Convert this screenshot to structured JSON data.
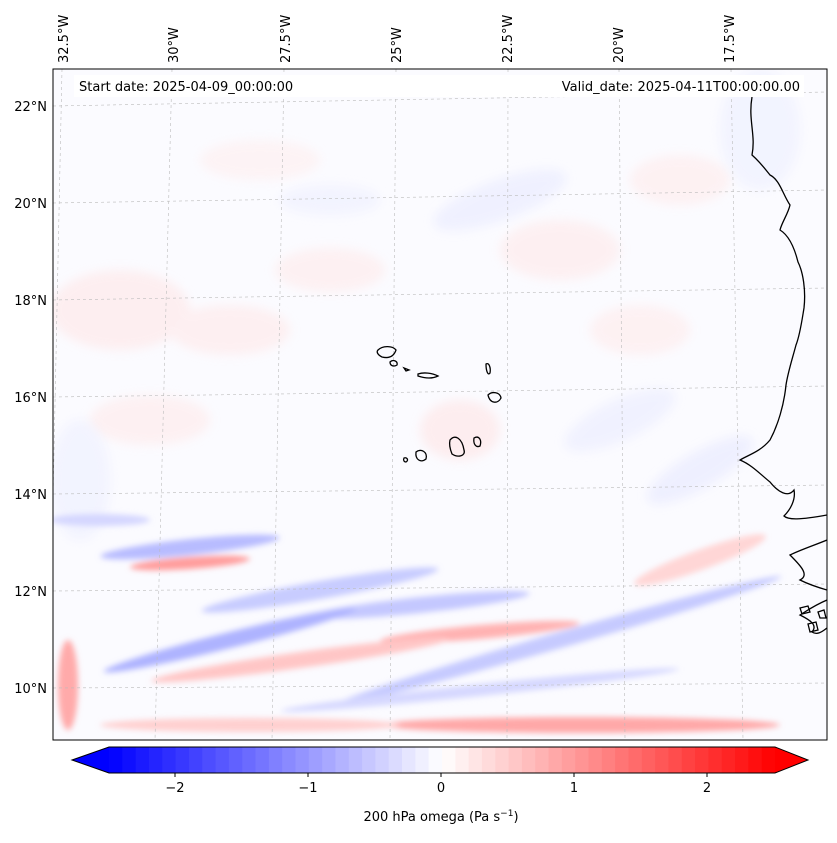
{
  "header": {
    "start_date": "Start date: 2025-04-09_00:00:00",
    "valid_date": "Valid_date: 2025-04-11T00:00:00.00"
  },
  "map": {
    "longitude_labels": [
      "32.5°W",
      "30°W",
      "27.5°W",
      "25°W",
      "22.5°W",
      "20°W",
      "17.5°W"
    ],
    "latitude_labels": [
      "22°N",
      "20°N",
      "18°N",
      "16°N",
      "14°N",
      "12°N",
      "10°N"
    ],
    "gridlines": true
  },
  "colorbar": {
    "label": "200 hPa omega (Pa s",
    "label_superscript": "−1",
    "label_suffix": ")",
    "ticks": [
      "−2",
      "−1",
      "0",
      "1",
      "2"
    ],
    "range": [
      -2.75,
      2.75
    ],
    "colormap": "bwr",
    "colors": {
      "negative": "#0000ff",
      "zero": "#ffffff",
      "positive": "#ff0000"
    }
  }
}
